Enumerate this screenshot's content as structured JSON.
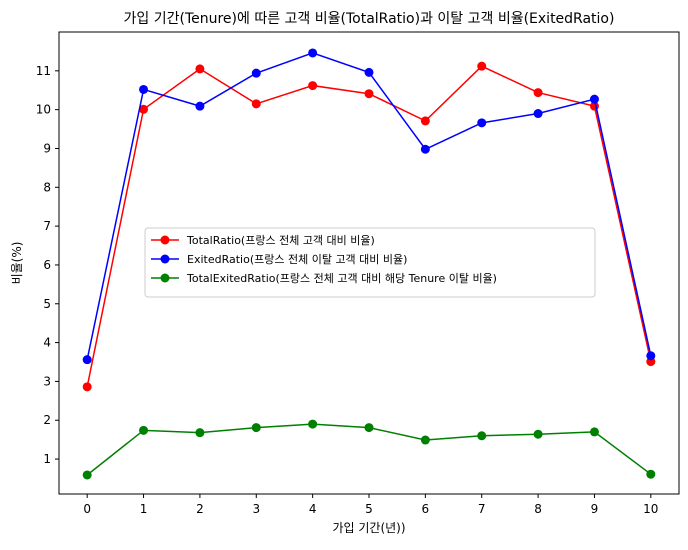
{
  "chart_data": {
    "type": "line",
    "title": "가입 기간(Tenure)에 따른 고객 비율(TotalRatio)과 이탈 고객 비율(ExitedRatio)",
    "xlabel": "가입 기간(년))",
    "ylabel": "비율(%)",
    "x": [
      0,
      1,
      2,
      3,
      4,
      5,
      6,
      7,
      8,
      9,
      10
    ],
    "xlim": [
      -0.5,
      10.5
    ],
    "ylim": [
      0.1,
      12.0
    ],
    "xticks": [
      "0",
      "1",
      "2",
      "3",
      "4",
      "5",
      "6",
      "7",
      "8",
      "9",
      "10"
    ],
    "yticks": [
      "1",
      "2",
      "3",
      "4",
      "5",
      "6",
      "7",
      "8",
      "9",
      "10",
      "11"
    ],
    "grid": false,
    "legend_position": "center-left",
    "series": [
      {
        "name": "TotalRatio(프랑스 전체 고객 대비 비율)",
        "color": "#ff0000",
        "marker": "circle",
        "values": [
          2.86,
          10.01,
          11.05,
          10.15,
          10.62,
          10.41,
          9.71,
          11.12,
          10.44,
          10.09,
          3.51
        ]
      },
      {
        "name": "ExitedRatio(프랑스 전체 이탈 고객 대비 비율)",
        "color": "#0000ff",
        "marker": "circle",
        "values": [
          3.56,
          10.52,
          10.09,
          10.94,
          11.46,
          10.96,
          8.98,
          9.66,
          9.9,
          10.27,
          3.66
        ]
      },
      {
        "name": "TotalExitedRatio(프랑스 전체 고객 대비 해당 Tenure 이탈 비율)",
        "color": "#008000",
        "marker": "circle",
        "values": [
          0.59,
          1.74,
          1.68,
          1.81,
          1.9,
          1.81,
          1.49,
          1.6,
          1.64,
          1.7,
          0.61
        ]
      }
    ]
  }
}
